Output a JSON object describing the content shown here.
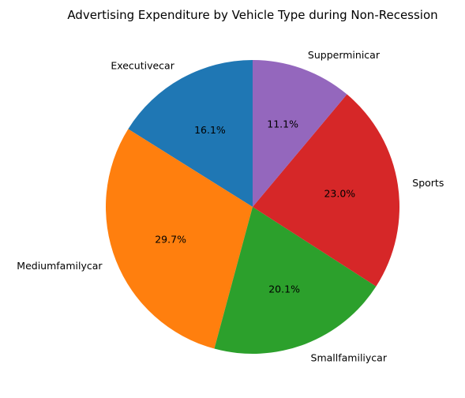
{
  "chart_data": {
    "type": "pie",
    "title": "Advertising Expenditure by Vehicle Type during Non-Recession",
    "slices": [
      {
        "label": "Executivecar",
        "value": 16.1,
        "pct_label": "16.1%",
        "color": "#1f77b4"
      },
      {
        "label": "Mediumfamilycar",
        "value": 29.7,
        "pct_label": "29.7%",
        "color": "#ff7f0e"
      },
      {
        "label": "Smallfamiliycar",
        "value": 20.1,
        "pct_label": "20.1%",
        "color": "#2ca02c"
      },
      {
        "label": "Sports",
        "value": 23.0,
        "pct_label": "23.0%",
        "color": "#d62728"
      },
      {
        "label": "Supperminicar",
        "value": 11.1,
        "pct_label": "11.1%",
        "color": "#9467bd"
      }
    ],
    "start_angle_deg": 90,
    "direction": "counterclockwise"
  }
}
